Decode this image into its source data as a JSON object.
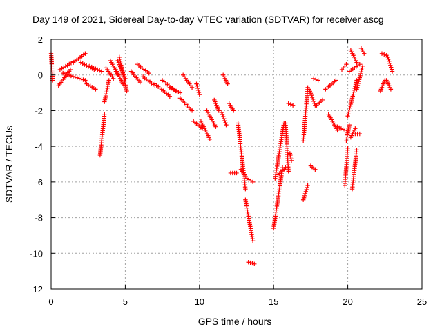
{
  "chart_data": {
    "type": "scatter",
    "title": "Day 149 of 2021, Sidereal Day-to-day VTEC variation (SDTVAR) for receiver ascg",
    "xlabel": "GPS time / hours",
    "ylabel": "SDTVAR / TECUs",
    "xlim": [
      0,
      25
    ],
    "ylim": [
      -12,
      2
    ],
    "xticks": [
      "0",
      "5",
      "10",
      "15",
      "20",
      "25"
    ],
    "yticks": [
      "-12",
      "-10",
      "-8",
      "-6",
      "-4",
      "-2",
      "0",
      "2"
    ],
    "grid": true,
    "marker": "plus",
    "series_color": "#ff0000",
    "segments": [
      {
        "x0": 0.0,
        "x1": 0.1,
        "y0": 1.2,
        "y1": -0.3
      },
      {
        "x0": 0.5,
        "x1": 1.3,
        "y0": -0.6,
        "y1": 0.3
      },
      {
        "x0": 0.6,
        "x1": 1.6,
        "y0": 0.3,
        "y1": 0.8
      },
      {
        "x0": 1.5,
        "x1": 2.3,
        "y0": 0.7,
        "y1": 1.2
      },
      {
        "x0": 0.8,
        "x1": 2.3,
        "y0": 0.1,
        "y1": -0.3
      },
      {
        "x0": 2.0,
        "x1": 2.9,
        "y0": 0.7,
        "y1": 0.3
      },
      {
        "x0": 2.4,
        "x1": 3.0,
        "y0": -0.5,
        "y1": -0.8
      },
      {
        "x0": 2.6,
        "x1": 3.4,
        "y0": 0.5,
        "y1": 0.2
      },
      {
        "x0": 3.3,
        "x1": 3.6,
        "y0": -4.5,
        "y1": -2.2
      },
      {
        "x0": 3.6,
        "x1": 3.9,
        "y0": -1.5,
        "y1": -0.3
      },
      {
        "x0": 3.7,
        "x1": 4.2,
        "y0": 0.4,
        "y1": -0.2
      },
      {
        "x0": 4.0,
        "x1": 4.5,
        "y0": 0.8,
        "y1": 0.0
      },
      {
        "x0": 4.3,
        "x1": 4.9,
        "y0": 0.4,
        "y1": -0.6
      },
      {
        "x0": 4.5,
        "x1": 5.0,
        "y0": 0.8,
        "y1": -0.2
      },
      {
        "x0": 4.6,
        "x1": 5.1,
        "y0": 1.0,
        "y1": -0.9
      },
      {
        "x0": 5.4,
        "x1": 6.0,
        "y0": 0.2,
        "y1": -0.4
      },
      {
        "x0": 5.8,
        "x1": 6.6,
        "y0": 0.6,
        "y1": 0.1
      },
      {
        "x0": 6.2,
        "x1": 7.0,
        "y0": -0.1,
        "y1": -0.6
      },
      {
        "x0": 7.0,
        "x1": 8.0,
        "y0": -0.5,
        "y1": -1.2
      },
      {
        "x0": 7.5,
        "x1": 8.4,
        "y0": -0.3,
        "y1": -0.9
      },
      {
        "x0": 8.0,
        "x1": 8.7,
        "y0": -0.7,
        "y1": -1.0
      },
      {
        "x0": 8.7,
        "x1": 9.5,
        "y0": -1.3,
        "y1": -2.0
      },
      {
        "x0": 8.9,
        "x1": 9.5,
        "y0": 0.0,
        "y1": -0.7
      },
      {
        "x0": 9.6,
        "x1": 10.2,
        "y0": -2.6,
        "y1": -3.0
      },
      {
        "x0": 9.8,
        "x1": 10.0,
        "y0": -0.5,
        "y1": -1.1
      },
      {
        "x0": 10.1,
        "x1": 10.7,
        "y0": -2.6,
        "y1": -3.6
      },
      {
        "x0": 10.5,
        "x1": 11.1,
        "y0": -2.0,
        "y1": -2.9
      },
      {
        "x0": 11.0,
        "x1": 11.3,
        "y0": -1.4,
        "y1": -2.0
      },
      {
        "x0": 11.5,
        "x1": 11.8,
        "y0": -2.1,
        "y1": -2.8
      },
      {
        "x0": 11.6,
        "x1": 11.9,
        "y0": 0.0,
        "y1": -0.5
      },
      {
        "x0": 12.0,
        "x1": 12.3,
        "y0": -1.6,
        "y1": -2.0
      },
      {
        "x0": 12.1,
        "x1": 12.5,
        "y0": -5.5,
        "y1": -5.5
      },
      {
        "x0": 12.6,
        "x1": 13.1,
        "y0": -2.7,
        "y1": -6.4
      },
      {
        "x0": 12.8,
        "x1": 13.2,
        "y0": -5.3,
        "y1": -5.8
      },
      {
        "x0": 13.1,
        "x1": 13.6,
        "y0": -7.0,
        "y1": -9.3
      },
      {
        "x0": 13.2,
        "x1": 13.6,
        "y0": -5.8,
        "y1": -6.0
      },
      {
        "x0": 13.3,
        "x1": 13.7,
        "y0": -10.5,
        "y1": -10.6
      },
      {
        "x0": 15.0,
        "x1": 15.6,
        "y0": -8.6,
        "y1": -5.2
      },
      {
        "x0": 15.1,
        "x1": 15.7,
        "y0": -5.8,
        "y1": -2.7
      },
      {
        "x0": 15.3,
        "x1": 15.8,
        "y0": -5.6,
        "y1": -5.2
      },
      {
        "x0": 15.8,
        "x1": 16.0,
        "y0": -2.7,
        "y1": -5.4
      },
      {
        "x0": 16.1,
        "x1": 16.2,
        "y0": -4.4,
        "y1": -4.8
      },
      {
        "x0": 16.0,
        "x1": 16.3,
        "y0": -1.6,
        "y1": -1.7
      },
      {
        "x0": 17.0,
        "x1": 17.3,
        "y0": -7.0,
        "y1": -6.2
      },
      {
        "x0": 17.0,
        "x1": 17.3,
        "y0": -3.7,
        "y1": -0.7
      },
      {
        "x0": 17.4,
        "x1": 17.8,
        "y0": -0.8,
        "y1": -1.7
      },
      {
        "x0": 17.5,
        "x1": 17.8,
        "y0": -5.1,
        "y1": -5.3
      },
      {
        "x0": 17.7,
        "x1": 18.0,
        "y0": -0.2,
        "y1": -0.3
      },
      {
        "x0": 17.9,
        "x1": 18.3,
        "y0": -1.7,
        "y1": -1.4
      },
      {
        "x0": 18.5,
        "x1": 19.2,
        "y0": -0.8,
        "y1": -0.3
      },
      {
        "x0": 18.7,
        "x1": 19.3,
        "y0": -2.2,
        "y1": -3.1
      },
      {
        "x0": 19.3,
        "x1": 19.8,
        "y0": -2.9,
        "y1": -3.1
      },
      {
        "x0": 19.6,
        "x1": 19.9,
        "y0": 0.3,
        "y1": 0.6
      },
      {
        "x0": 19.8,
        "x1": 20.0,
        "y0": -6.2,
        "y1": -4.1
      },
      {
        "x0": 19.9,
        "x1": 20.1,
        "y0": -3.7,
        "y1": -2.8
      },
      {
        "x0": 20.0,
        "x1": 20.6,
        "y0": -2.3,
        "y1": -0.3
      },
      {
        "x0": 20.2,
        "x1": 20.6,
        "y0": 1.4,
        "y1": 0.7
      },
      {
        "x0": 20.1,
        "x1": 20.8,
        "y0": 0.2,
        "y1": 0.6
      },
      {
        "x0": 20.2,
        "x1": 20.5,
        "y0": -3.5,
        "y1": -3.0
      },
      {
        "x0": 20.3,
        "x1": 20.6,
        "y0": -6.4,
        "y1": -4.2
      },
      {
        "x0": 20.5,
        "x1": 20.8,
        "y0": -3.3,
        "y1": -3.3
      },
      {
        "x0": 20.6,
        "x1": 21.0,
        "y0": -0.8,
        "y1": 0.5
      },
      {
        "x0": 20.9,
        "x1": 21.1,
        "y0": 1.5,
        "y1": 1.2
      },
      {
        "x0": 22.2,
        "x1": 22.5,
        "y0": -0.9,
        "y1": -0.3
      },
      {
        "x0": 22.3,
        "x1": 22.6,
        "y0": 1.2,
        "y1": 1.1
      },
      {
        "x0": 22.6,
        "x1": 22.9,
        "y0": -0.3,
        "y1": -0.8
      },
      {
        "x0": 22.7,
        "x1": 23.0,
        "y0": 1.0,
        "y1": 0.2
      }
    ]
  }
}
